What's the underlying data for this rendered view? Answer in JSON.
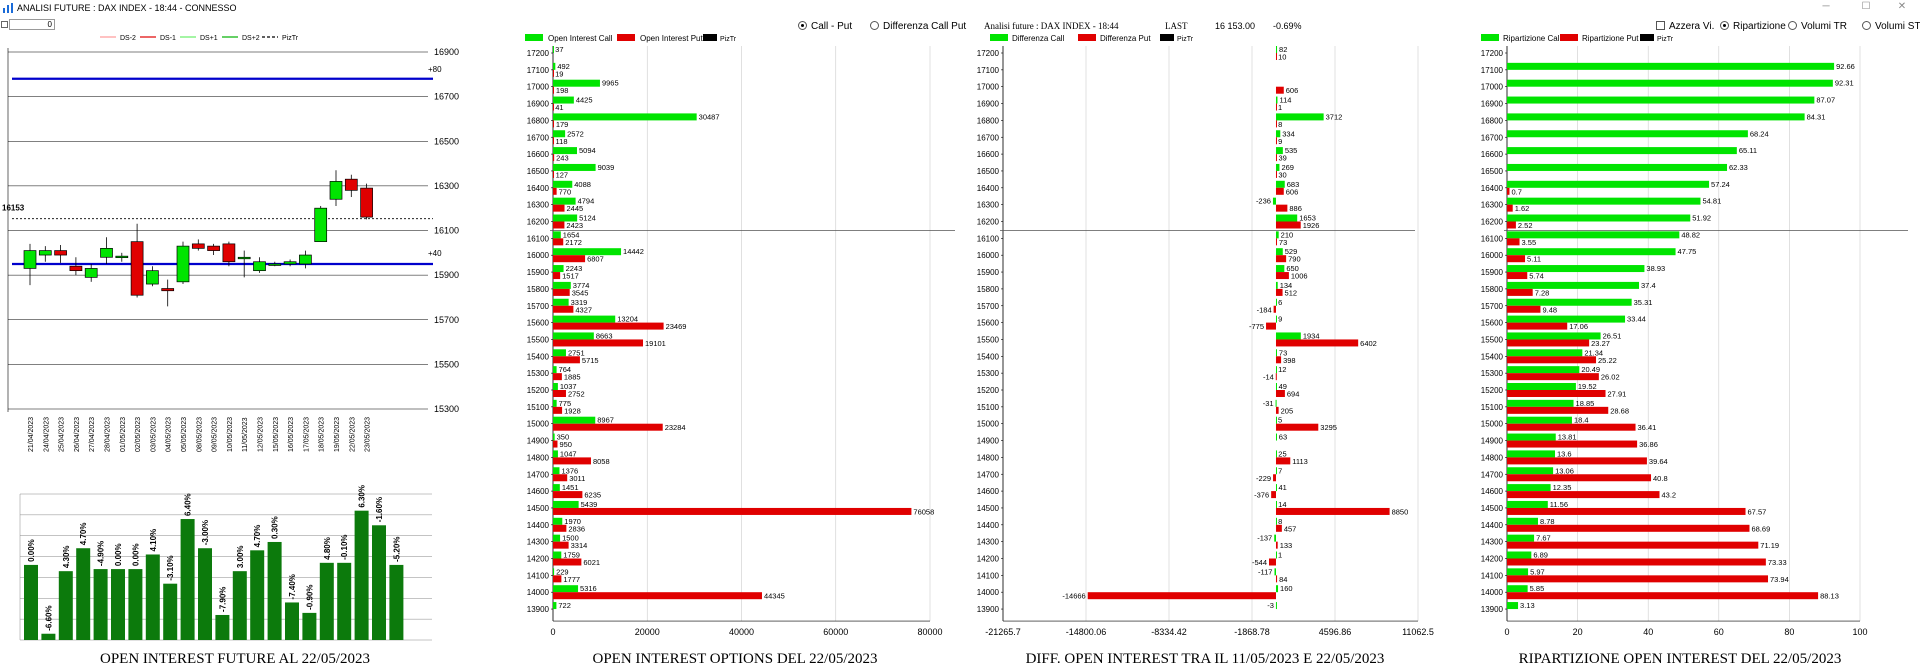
{
  "window": {
    "title": "ANALISI FUTURE : DAX INDEX - 18:44 - CONNESSO",
    "minimize": "─",
    "maximize": "☐",
    "close": "✕"
  },
  "toolbar": {
    "number_value": "0"
  },
  "colors": {
    "green": "#00E400",
    "red": "#E00000",
    "darkgreen": "#0C7A0C",
    "blue": "#0000CC"
  },
  "panel1": {
    "legend": [
      {
        "label": "DS-2",
        "color": "#FF9999",
        "dash": false
      },
      {
        "label": "DS-1",
        "color": "#E00000",
        "dash": false
      },
      {
        "label": "DS+1",
        "color": "#66EE66",
        "dash": false
      },
      {
        "label": "DS+2",
        "color": "#00B000",
        "dash": false
      },
      {
        "label": "PizTr",
        "color": "#000000",
        "dash": true
      }
    ],
    "y_ticks": [
      "16900",
      "16700",
      "16500",
      "16300",
      "16100",
      "15900",
      "15700",
      "15500",
      "15300"
    ],
    "tag_up": "+80",
    "tag_down": "+40",
    "last_label": "16153",
    "upper_line_price": 16780,
    "lower_line_price": 15950,
    "last_price": 16153,
    "dates": [
      "21/04/2023",
      "24/04/2023",
      "25/04/2023",
      "26/04/2023",
      "27/04/2023",
      "28/04/2023",
      "01/05/2023",
      "02/05/2023",
      "03/05/2023",
      "04/05/2023",
      "05/05/2023",
      "08/05/2023",
      "09/05/2023",
      "10/05/2023",
      "11/05/2023",
      "12/05/2023",
      "15/05/2023",
      "16/05/2023",
      "17/05/2023",
      "18/05/2023",
      "19/05/2023",
      "22/05/2023",
      "23/05/2023"
    ],
    "candles": [
      {
        "o": 15930,
        "c": 16010,
        "h": 16040,
        "l": 15855
      },
      {
        "o": 15990,
        "c": 16010,
        "h": 16030,
        "l": 15960
      },
      {
        "o": 16010,
        "c": 15990,
        "h": 16035,
        "l": 15955
      },
      {
        "o": 15940,
        "c": 15920,
        "h": 15980,
        "l": 15900
      },
      {
        "o": 15890,
        "c": 15930,
        "h": 15950,
        "l": 15870
      },
      {
        "o": 15980,
        "c": 16020,
        "h": 16070,
        "l": 15950
      },
      {
        "o": 15985,
        "c": 15985,
        "h": 16000,
        "l": 15960
      },
      {
        "o": 16050,
        "c": 15810,
        "h": 16130,
        "l": 15800
      },
      {
        "o": 15860,
        "c": 15920,
        "h": 15940,
        "l": 15850
      },
      {
        "o": 15840,
        "c": 15830,
        "h": 15880,
        "l": 15760
      },
      {
        "o": 15870,
        "c": 16030,
        "h": 16050,
        "l": 15860
      },
      {
        "o": 16040,
        "c": 16020,
        "h": 16060,
        "l": 16010
      },
      {
        "o": 16030,
        "c": 16010,
        "h": 16040,
        "l": 15990
      },
      {
        "o": 16040,
        "c": 15960,
        "h": 16050,
        "l": 15940
      },
      {
        "o": 15980,
        "c": 15980,
        "h": 16010,
        "l": 15890
      },
      {
        "o": 15920,
        "c": 15960,
        "h": 15980,
        "l": 15910
      },
      {
        "o": 15950,
        "c": 15950,
        "h": 15960,
        "l": 15940
      },
      {
        "o": 15950,
        "c": 15960,
        "h": 15970,
        "l": 15940
      },
      {
        "o": 15950,
        "c": 15990,
        "h": 16010,
        "l": 15930
      },
      {
        "o": 16050,
        "c": 16200,
        "h": 16210,
        "l": 16050
      },
      {
        "o": 16240,
        "c": 16320,
        "h": 16370,
        "l": 16210
      },
      {
        "o": 16330,
        "c": 16280,
        "h": 16350,
        "l": 16250
      },
      {
        "o": 16290,
        "c": 16160,
        "h": 16310,
        "l": 16150
      }
    ],
    "bars": [
      {
        "value": 36,
        "label": "0.00%"
      },
      {
        "value": 3,
        "label": "-6.60%"
      },
      {
        "value": 33,
        "label": "4.30%"
      },
      {
        "value": 44,
        "label": "4.70%"
      },
      {
        "value": 34,
        "label": "-4.90%"
      },
      {
        "value": 34,
        "label": "0.00%"
      },
      {
        "value": 34,
        "label": "0.00%"
      },
      {
        "value": 41,
        "label": "4.10%"
      },
      {
        "value": 27,
        "label": "-3.10%"
      },
      {
        "value": 58,
        "label": "6.40%"
      },
      {
        "value": 44,
        "label": "-3.00%"
      },
      {
        "value": 12,
        "label": "-7.90%"
      },
      {
        "value": 33,
        "label": "3.00%"
      },
      {
        "value": 43,
        "label": "4.70%"
      },
      {
        "value": 47,
        "label": "0.30%"
      },
      {
        "value": 18,
        "label": "-7.40%"
      },
      {
        "value": 13,
        "label": "-0.90%"
      },
      {
        "value": 37,
        "label": "4.80%"
      },
      {
        "value": 37,
        "label": "-0.10%"
      },
      {
        "value": 62,
        "label": "6.30%"
      },
      {
        "value": 55,
        "label": "-1.60%"
      },
      {
        "value": 36,
        "label": "-5.20%"
      }
    ],
    "footer": "OPEN INTEREST FUTURE AL 22/05/2023"
  },
  "strikes": [
    "17200",
    "17100",
    "17000",
    "16900",
    "16800",
    "16700",
    "16600",
    "16500",
    "16400",
    "16300",
    "16200",
    "16100",
    "16000",
    "15900",
    "15800",
    "15700",
    "15600",
    "15500",
    "15400",
    "15300",
    "15200",
    "15100",
    "15000",
    "14900",
    "14800",
    "14700",
    "14600",
    "14500",
    "14400",
    "14300",
    "14200",
    "14100",
    "14000",
    "13900"
  ],
  "chart_data": [
    {
      "type": "bar",
      "title": "OPEN INTEREST OPTIONS DEL 22/05/2023",
      "series": [
        {
          "name": "Open Interest Call",
          "values": [
            37,
            492,
            9965,
            4425,
            30487,
            2572,
            5094,
            9039,
            4088,
            4794,
            5124,
            1654,
            14442,
            2243,
            3774,
            3319,
            13204,
            8663,
            2751,
            764,
            1037,
            775,
            8967,
            350,
            1047,
            1376,
            1451,
            5439,
            1970,
            1500,
            1759,
            229,
            5316,
            722
          ]
        },
        {
          "name": "Open Interest Put",
          "values": [
            0,
            19,
            198,
            41,
            179,
            118,
            243,
            127,
            770,
            2445,
            2423,
            2172,
            6807,
            1517,
            3545,
            4327,
            23469,
            19101,
            5715,
            1885,
            2752,
            1928,
            23284,
            950,
            8058,
            3011,
            6235,
            76058,
            2836,
            3314,
            6021,
            1777,
            44345,
            0
          ]
        }
      ],
      "xlim": [
        0,
        80000
      ],
      "x_ticks": [
        "0",
        "20000",
        "40000",
        "60000",
        "80000"
      ],
      "legend": [
        "Open Interest Call",
        "Open Interest Put",
        "PizTr"
      ]
    },
    {
      "type": "bar",
      "title": "DIFF. OPEN INTEREST TRA IL 11/05/2023 E 22/05/2023",
      "header": {
        "label": "Analisi future : DAX INDEX - 18:44",
        "last_label": "LAST",
        "last_value": "16 153.00",
        "change": "-0.69%"
      },
      "series": [
        {
          "name": "Differenza Call",
          "values": [
            82,
            0,
            0,
            114,
            3712,
            334,
            535,
            269,
            683,
            -236,
            1653,
            210,
            529,
            650,
            134,
            6,
            9,
            1934,
            73,
            12,
            49,
            -31,
            5,
            63,
            25,
            7,
            41,
            14,
            8,
            -137,
            1,
            -117,
            160,
            -3
          ]
        },
        {
          "name": "Differenza Put",
          "values": [
            10,
            0,
            606,
            1,
            8,
            9,
            39,
            30,
            606,
            886,
            1926,
            73,
            790,
            1006,
            512,
            -184,
            -775,
            6402,
            398,
            -14,
            694,
            205,
            3295,
            0,
            1113,
            -229,
            -376,
            8850,
            457,
            133,
            -544,
            84,
            -14666,
            0
          ]
        }
      ],
      "xlim": [
        -21265.7,
        11062.5
      ],
      "x_ticks": [
        "-21265.7",
        "-14800.06",
        "-8334.42",
        "-1868.78",
        "4596.86",
        "11062.5"
      ],
      "legend": [
        "Differenza Call",
        "Differenza Put",
        "PizTr"
      ]
    },
    {
      "type": "bar",
      "title": "RIPARTIZIONE OPEN INTEREST DEL 22/05/2023",
      "series": [
        {
          "name": "Ripartizione Call",
          "values": [
            0,
            92.66,
            92.31,
            87.07,
            84.31,
            68.24,
            65.11,
            62.33,
            57.24,
            54.81,
            51.92,
            48.82,
            47.75,
            38.93,
            37.4,
            35.31,
            33.44,
            26.51,
            21.34,
            20.49,
            19.52,
            18.85,
            18.4,
            13.81,
            13.6,
            13.06,
            12.35,
            11.56,
            8.78,
            7.67,
            6.89,
            5.97,
            5.85,
            3.13
          ]
        },
        {
          "name": "Ripartizione Put",
          "values": [
            0,
            0,
            0,
            0,
            0,
            0,
            0,
            0,
            0.7,
            1.62,
            2.52,
            3.55,
            5.11,
            5.74,
            7.28,
            9.48,
            17.06,
            23.27,
            25.22,
            26.02,
            27.91,
            28.68,
            36.41,
            36.86,
            39.64,
            40.8,
            43.2,
            67.57,
            68.69,
            71.19,
            73.33,
            73.94,
            88.13,
            0
          ]
        }
      ],
      "xlim": [
        0,
        100
      ],
      "x_ticks": [
        "0",
        "20",
        "40",
        "60",
        "80",
        "100"
      ],
      "legend": [
        "Ripartizione Call",
        "Ripartizione Put",
        "PizTr"
      ]
    }
  ],
  "panel2_labels": {
    "call": "Open Interest Call",
    "put": "Open Interest Put",
    "piz": "PizTr",
    "radio_a": "Call - Put",
    "radio_b": "Differenza Call Put"
  },
  "panel3_labels": {
    "call": "Differenza Call",
    "put": "Differenza Put",
    "piz": "PizTr"
  },
  "panel4_labels": {
    "call": "Ripartizione Call",
    "put": "Ripartizione Put",
    "piz": "PizTr",
    "azzera": "Azzera Vi.",
    "ripartizione": "Ripartizione",
    "volumi_tr": "Volumi TR",
    "volumi_st": "Volumi ST"
  },
  "footers": {
    "p2": "OPEN INTEREST OPTIONS DEL 22/05/2023",
    "p3": "DIFF. OPEN INTEREST TRA IL 11/05/2023 E 22/05/2023",
    "p4": "RIPARTIZIONE OPEN INTEREST DEL 22/05/2023"
  }
}
